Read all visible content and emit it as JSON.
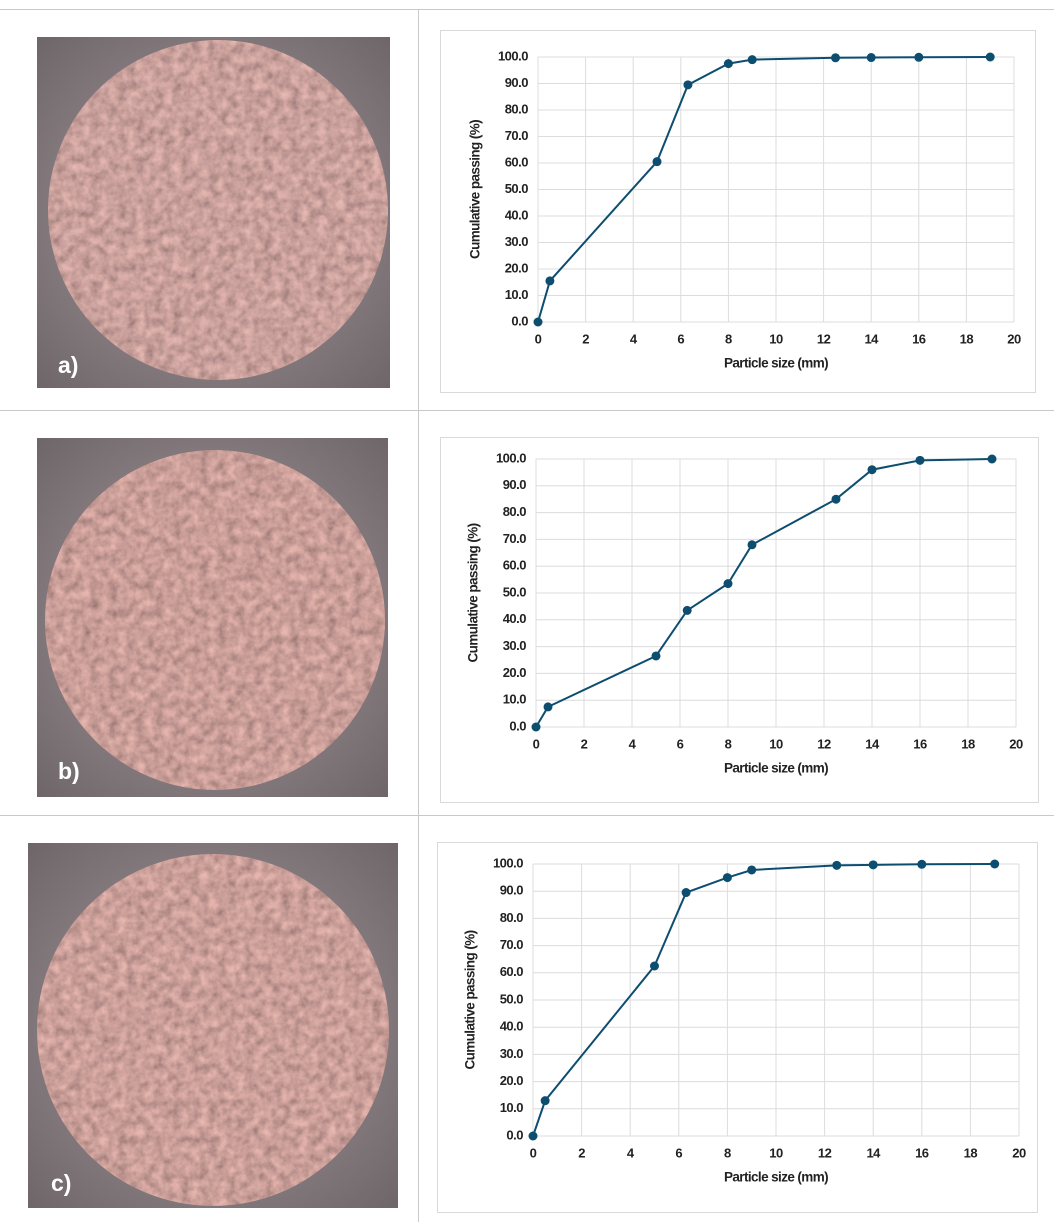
{
  "chart_data": [
    {
      "type": "line",
      "panel_label": "a)",
      "xlabel": "Particle size (mm)",
      "ylabel": "Cumulative passing (%)",
      "x": [
        0,
        0.5,
        5,
        6.3,
        8,
        9,
        12.5,
        14,
        16,
        19
      ],
      "series": [
        {
          "color": "#0d4d70",
          "values": [
            0,
            15.5,
            60.5,
            89.5,
            97.5,
            99,
            99.7,
            99.8,
            99.9,
            100
          ]
        }
      ],
      "xlim": [
        0,
        20
      ],
      "xticks": [
        0,
        2,
        4,
        6,
        8,
        10,
        12,
        14,
        16,
        18,
        20
      ],
      "ylim": [
        0,
        100
      ],
      "yticks": [
        {
          "value": 0,
          "label": "0.0"
        },
        {
          "value": 10,
          "label": "10.0"
        },
        {
          "value": 20,
          "label": "20.0"
        },
        {
          "value": 30,
          "label": "30.0"
        },
        {
          "value": 40,
          "label": "40.0"
        },
        {
          "value": 50,
          "label": "50.0"
        },
        {
          "value": 60,
          "label": "60.0"
        },
        {
          "value": 70,
          "label": "70.0"
        },
        {
          "value": 80,
          "label": "80.0"
        },
        {
          "value": 90,
          "label": "90.0"
        },
        {
          "value": 100,
          "label": "100.0"
        }
      ],
      "grid": true
    },
    {
      "type": "line",
      "panel_label": "b)",
      "xlabel": "Particle size (mm)",
      "ylabel": "Cumulative passing (%)",
      "x": [
        0,
        0.5,
        5,
        6.3,
        8,
        9,
        12.5,
        14,
        16,
        19
      ],
      "series": [
        {
          "color": "#0d4d70",
          "values": [
            0,
            7.5,
            26.5,
            43.5,
            53.5,
            68,
            85,
            96,
            99.5,
            100
          ]
        }
      ],
      "xlim": [
        0,
        20
      ],
      "xticks": [
        0,
        2,
        4,
        6,
        8,
        10,
        12,
        14,
        16,
        18,
        20
      ],
      "ylim": [
        0,
        100
      ],
      "yticks": [
        {
          "value": 0,
          "label": "0.0"
        },
        {
          "value": 10,
          "label": "10.0"
        },
        {
          "value": 20,
          "label": "20.0"
        },
        {
          "value": 30,
          "label": "30.0"
        },
        {
          "value": 40,
          "label": "40.0"
        },
        {
          "value": 50,
          "label": "50.0"
        },
        {
          "value": 60,
          "label": "60.0"
        },
        {
          "value": 70,
          "label": "70.0"
        },
        {
          "value": 80,
          "label": "80.0"
        },
        {
          "value": 90,
          "label": "90.0"
        },
        {
          "value": 100,
          "label": "100.0"
        }
      ],
      "grid": true
    },
    {
      "type": "line",
      "panel_label": "c)",
      "xlabel": "Particle size (mm)",
      "ylabel": "Cumulative passing (%)",
      "x": [
        0,
        0.5,
        5,
        6.3,
        8,
        9,
        12.5,
        14,
        16,
        19
      ],
      "series": [
        {
          "color": "#0d4d70",
          "values": [
            0,
            13,
            62.5,
            89.5,
            95,
            97.8,
            99.5,
            99.7,
            99.9,
            100
          ]
        }
      ],
      "xlim": [
        0,
        20
      ],
      "xticks": [
        0,
        2,
        4,
        6,
        8,
        10,
        12,
        14,
        16,
        18,
        20
      ],
      "ylim": [
        0,
        100
      ],
      "yticks": [
        {
          "value": 0,
          "label": "0.0"
        },
        {
          "value": 10,
          "label": "10.0"
        },
        {
          "value": 20,
          "label": "20.0"
        },
        {
          "value": 30,
          "label": "30.0"
        },
        {
          "value": 40,
          "label": "40.0"
        },
        {
          "value": 50,
          "label": "50.0"
        },
        {
          "value": 60,
          "label": "60.0"
        },
        {
          "value": 70,
          "label": "70.0"
        },
        {
          "value": 80,
          "label": "80.0"
        },
        {
          "value": 90,
          "label": "90.0"
        },
        {
          "value": 100,
          "label": "100.0"
        }
      ],
      "grid": true
    }
  ]
}
